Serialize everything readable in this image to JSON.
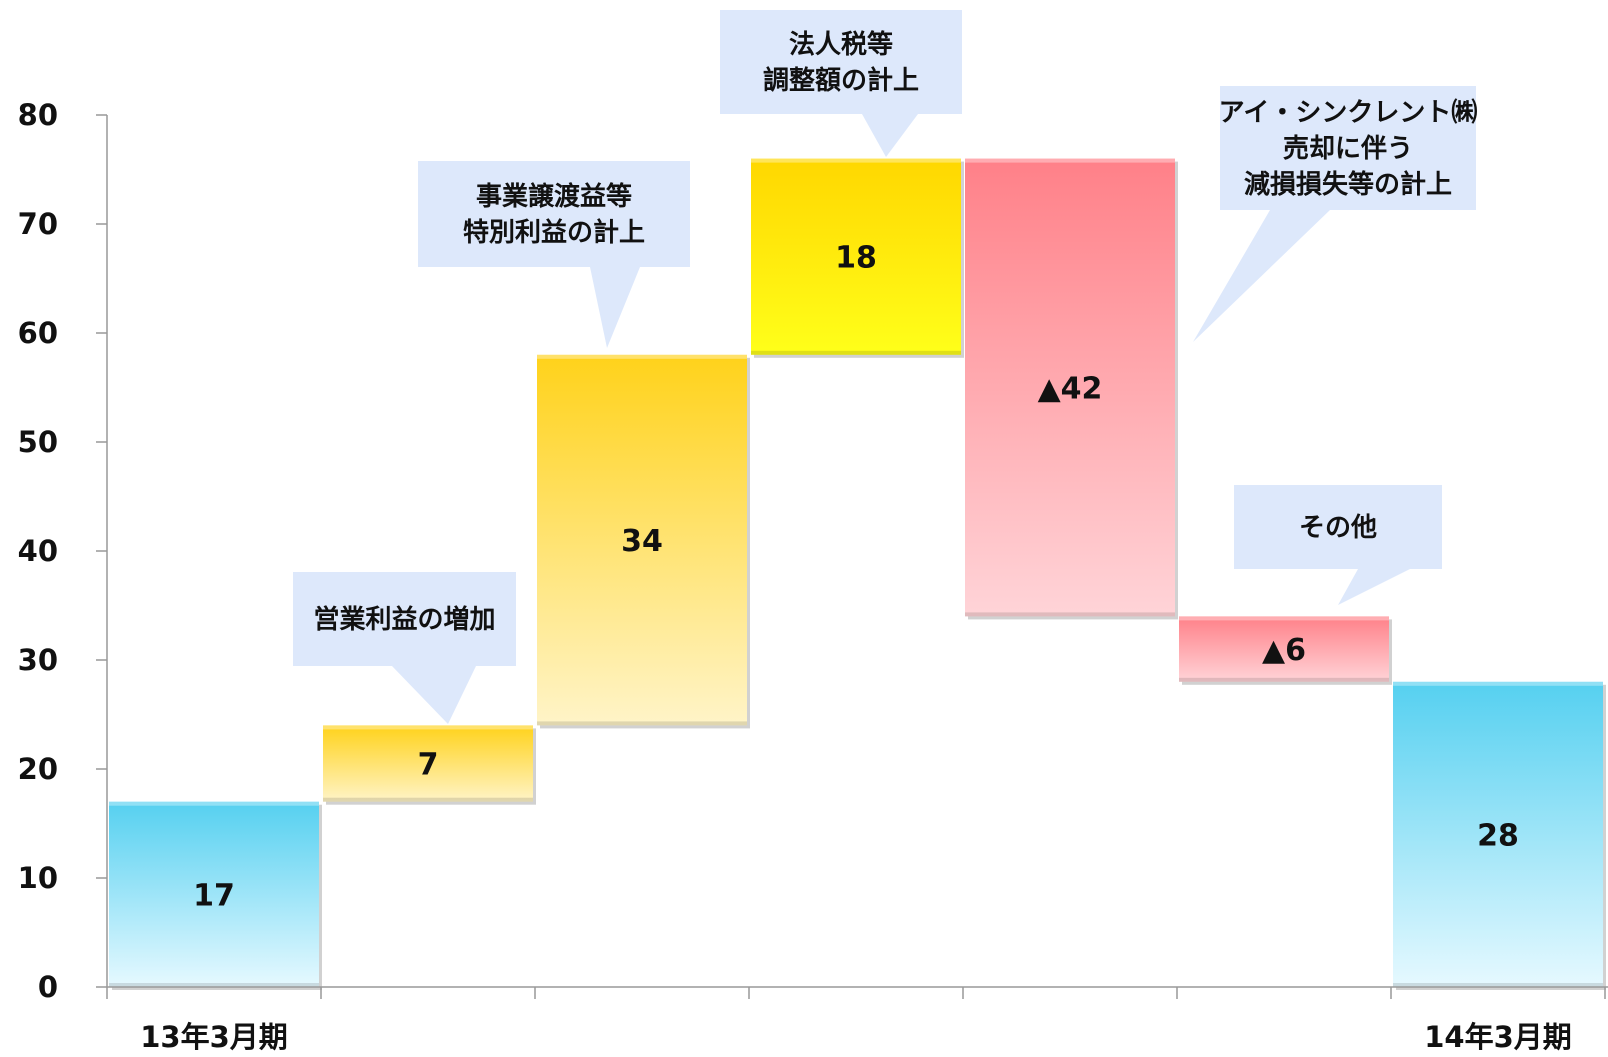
{
  "chart_data": {
    "type": "bar",
    "subtype": "waterfall",
    "ylim": [
      0,
      80
    ],
    "yticks": [
      0,
      10,
      20,
      30,
      40,
      50,
      60,
      70,
      80
    ],
    "grid": false,
    "categories": [
      "13年3月期",
      "",
      "",
      "",
      "",
      "",
      "14年3月期"
    ],
    "bars": [
      {
        "kind": "total",
        "start": 0,
        "end": 17,
        "label": "17",
        "color": "blue"
      },
      {
        "kind": "increase",
        "start": 17,
        "end": 24,
        "label": "7",
        "color": "gold"
      },
      {
        "kind": "increase",
        "start": 24,
        "end": 58,
        "label": "34",
        "color": "gold"
      },
      {
        "kind": "increase",
        "start": 58,
        "end": 76,
        "label": "18",
        "color": "yellow"
      },
      {
        "kind": "decrease",
        "start": 76,
        "end": 34,
        "label": "▲42",
        "color": "red"
      },
      {
        "kind": "decrease",
        "start": 34,
        "end": 28,
        "label": "▲6",
        "color": "red"
      },
      {
        "kind": "total",
        "start": 0,
        "end": 28,
        "label": "28",
        "color": "blue"
      }
    ],
    "annotations": [
      {
        "bar": 1,
        "lines": [
          "営業利益の増加"
        ]
      },
      {
        "bar": 2,
        "lines": [
          "事業譲渡益等",
          "特別利益の計上"
        ]
      },
      {
        "bar": 3,
        "lines": [
          "法人税等",
          "調整額の計上"
        ]
      },
      {
        "bar": 4,
        "lines": [
          "アイ・シンクレント㈱",
          "売却に伴う",
          "減損損失等の計上"
        ]
      },
      {
        "bar": 5,
        "lines": [
          "その他"
        ]
      }
    ]
  },
  "colors": {
    "blue_top": "#55d0f0",
    "blue_bottom": "#e6f9ff",
    "gold_top": "#ffd21a",
    "gold_bottom": "#fff4c8",
    "yellow_top": "#ffd700",
    "yellow_bottom": "#ffff1a",
    "red_top": "#ff8088",
    "red_bottom": "#ffd4d8",
    "callout": "#dde8fb",
    "axis": "#999999"
  }
}
